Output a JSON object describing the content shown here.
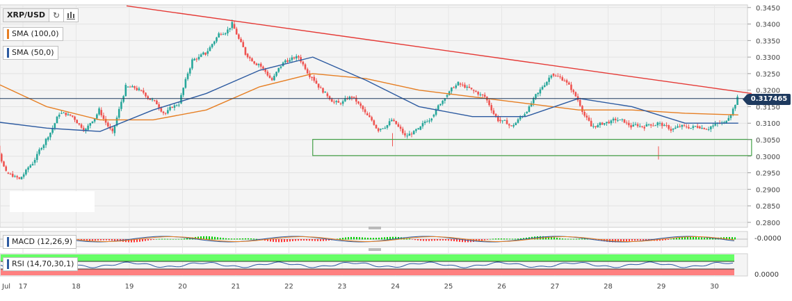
{
  "symbol": "XRP/USD",
  "toolbar": {
    "refresh_icon": "refresh-icon",
    "bars_icon": "candles-icon"
  },
  "indicators": {
    "sma100": {
      "label": "SMA (100,0)",
      "color": "#e67e22"
    },
    "sma50": {
      "label": "SMA (50,0)",
      "color": "#2c5aa0"
    },
    "macd": {
      "label": "MACD (12,26,9)",
      "value_label": "-0.0000"
    },
    "rsi": {
      "label": "RSI (14,70,30,1)",
      "value_label": "0.0000"
    }
  },
  "current_price": {
    "label": "0.317465",
    "value": 0.317465
  },
  "colors": {
    "up": "#26a69a",
    "down": "#ef5350",
    "trendline": "#e53935",
    "support_box": "#43a047",
    "rsi_overbought": "#66ff66",
    "rsi_oversold": "#ff8080",
    "price_line": "#1e3a5f"
  },
  "chart_data": {
    "type": "line",
    "title": "XRP/USD",
    "x_labels": [
      "Jul",
      "17",
      "18",
      "19",
      "20",
      "21",
      "22",
      "23",
      "24",
      "25",
      "26",
      "27",
      "28",
      "29",
      "30"
    ],
    "y_ticks": [
      "0.3450",
      "0.3400",
      "0.3350",
      "0.3300",
      "0.3250",
      "0.3200",
      "0.3150",
      "0.3100",
      "0.3050",
      "0.3000",
      "0.2950",
      "0.2900",
      "0.2850",
      "0.2800"
    ],
    "ylim": [
      0.2785,
      0.3458
    ],
    "series": [
      {
        "name": "XRP/USD",
        "x": [
          "Jul 16 12:00",
          "Jul 16 18:00",
          "Jul 17 00:00",
          "Jul 17 06:00",
          "Jul 17 12:00",
          "Jul 17 18:00",
          "Jul 18 00:00",
          "Jul 18 06:00",
          "Jul 18 12:00",
          "Jul 18 18:00",
          "Jul 19 00:00",
          "Jul 19 06:00",
          "Jul 19 12:00",
          "Jul 19 18:00",
          "Jul 20 00:00",
          "Jul 20 06:00",
          "Jul 20 12:00",
          "Jul 20 18:00",
          "Jul 21 00:00",
          "Jul 21 06:00",
          "Jul 21 12:00",
          "Jul 21 18:00",
          "Jul 22 00:00",
          "Jul 22 06:00",
          "Jul 22 12:00",
          "Jul 22 18:00",
          "Jul 23 00:00",
          "Jul 23 06:00",
          "Jul 23 12:00",
          "Jul 23 18:00",
          "Jul 24 00:00",
          "Jul 24 06:00",
          "Jul 24 12:00",
          "Jul 24 18:00",
          "Jul 25 00:00",
          "Jul 25 06:00",
          "Jul 25 12:00",
          "Jul 25 18:00",
          "Jul 26 00:00",
          "Jul 26 06:00",
          "Jul 26 12:00",
          "Jul 26 18:00",
          "Jul 27 00:00",
          "Jul 27 06:00",
          "Jul 27 12:00",
          "Jul 27 18:00",
          "Jul 28 00:00",
          "Jul 28 06:00",
          "Jul 28 12:00",
          "Jul 28 18:00",
          "Jul 29 00:00",
          "Jul 29 06:00",
          "Jul 29 12:00",
          "Jul 29 18:00",
          "Jul 30 00:00",
          "Jul 30 06:00",
          "Jul 30 12:00"
        ],
        "values": [
          0.308,
          0.295,
          0.293,
          0.298,
          0.305,
          0.313,
          0.312,
          0.308,
          0.314,
          0.307,
          0.321,
          0.32,
          0.317,
          0.313,
          0.316,
          0.329,
          0.331,
          0.337,
          0.34,
          0.331,
          0.328,
          0.323,
          0.329,
          0.33,
          0.324,
          0.319,
          0.316,
          0.318,
          0.313,
          0.308,
          0.311,
          0.306,
          0.308,
          0.312,
          0.318,
          0.322,
          0.32,
          0.318,
          0.311,
          0.309,
          0.313,
          0.319,
          0.325,
          0.323,
          0.317,
          0.309,
          0.31,
          0.311,
          0.309,
          0.309,
          0.31,
          0.308,
          0.309,
          0.309,
          0.309,
          0.31,
          0.3175
        ]
      },
      {
        "name": "SMA (100,0)",
        "x": [
          "Jul 16 12:00",
          "Jul 17 12:00",
          "Jul 18 12:00",
          "Jul 19 12:00",
          "Jul 20 12:00",
          "Jul 21 12:00",
          "Jul 22 12:00",
          "Jul 23 12:00",
          "Jul 24 12:00",
          "Jul 25 12:00",
          "Jul 26 12:00",
          "Jul 27 12:00",
          "Jul 28 12:00",
          "Jul 29 12:00",
          "Jul 30 12:00"
        ],
        "values": [
          0.3225,
          0.315,
          0.311,
          0.311,
          0.314,
          0.321,
          0.325,
          0.3235,
          0.32,
          0.318,
          0.316,
          0.314,
          0.314,
          0.313,
          0.3125
        ]
      },
      {
        "name": "SMA (50,0)",
        "x": [
          "Jul 16 12:00",
          "Jul 17 12:00",
          "Jul 18 12:00",
          "Jul 19 12:00",
          "Jul 20 12:00",
          "Jul 21 12:00",
          "Jul 22 12:00",
          "Jul 23 12:00",
          "Jul 24 12:00",
          "Jul 25 12:00",
          "Jul 26 12:00",
          "Jul 27 12:00",
          "Jul 28 12:00",
          "Jul 29 12:00",
          "Jul 30 12:00"
        ],
        "values": [
          0.3105,
          0.3085,
          0.3075,
          0.314,
          0.319,
          0.326,
          0.33,
          0.323,
          0.315,
          0.312,
          0.312,
          0.3175,
          0.315,
          0.31,
          0.31
        ]
      }
    ],
    "annotations": [
      {
        "type": "trendline",
        "x1": "Jul 19 00:00",
        "y1": 0.3455,
        "x2": "Jul 30 18:00",
        "y2": 0.319
      },
      {
        "type": "horizontal_line",
        "y": 0.317465
      },
      {
        "type": "range_box",
        "x1": "Jul 22 12:00",
        "x2": "Jul 30 18:00",
        "y_low": 0.3002,
        "y_high": 0.3051
      }
    ],
    "grid": true,
    "legend": "top-left"
  }
}
